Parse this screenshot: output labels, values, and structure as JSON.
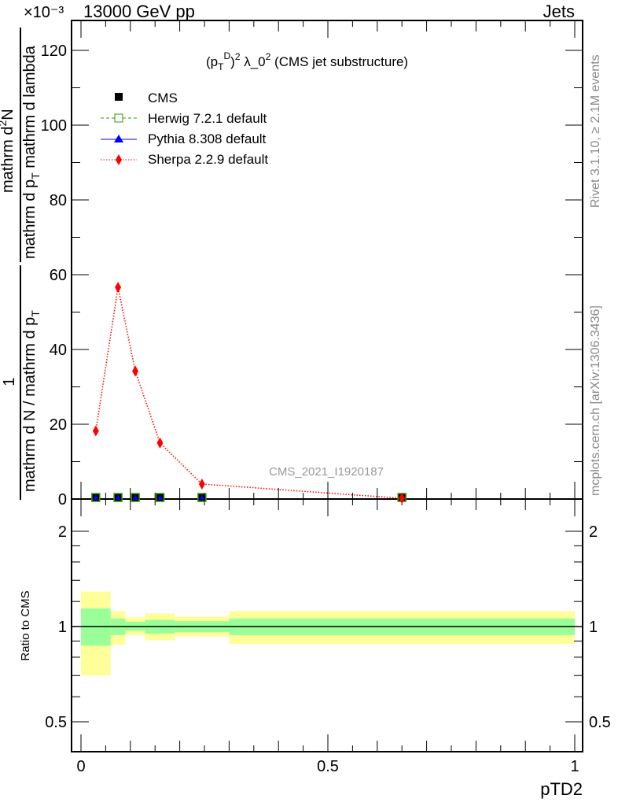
{
  "header": {
    "left": "13000 GeV pp",
    "right": "Jets",
    "exponent": "×10⁻³"
  },
  "side": {
    "rivet": "Rivet 3.1.10, ≥ 2.1M events",
    "mcplots": "mcplots.cern.ch [arXiv:1306.3436]"
  },
  "watermark": "CMS_2021_I1920187",
  "colors": {
    "cms": "#000000",
    "herwig": "#339900",
    "pythia": "#0000ff",
    "sherpa": "#ff0000",
    "band_yellow": "#ffff99",
    "band_green": "#99ff99"
  },
  "chart_data": [
    {
      "type": "scatter",
      "title": "(p_T^D)^2 λ_0^2 (CMS jet substructure)",
      "title_parts": {
        "p": "(p",
        "sub": "T",
        "sup": "D",
        "close": ")",
        "sq": "2",
        "lam": " λ_0",
        "sq2": "2",
        "rest": " (CMS jet substructure)"
      },
      "ylabel": "1 / (mathrm d N / mathrm d p_T) mathrm d²N / (mathrm d p_T mathrm d lambda)",
      "ylabel_parts": {
        "num": "1",
        "den": "mathrm d N / mathrm d p",
        "den_sub": "T",
        "num2": "mathrm d",
        "num2_sup": "2",
        "num2b": "N",
        "den2": "mathrm d p",
        "den2_sub": "T",
        "den2b": " mathrm d lambda"
      },
      "xlim": [
        0,
        1
      ],
      "ylim": [
        0,
        128
      ],
      "y_scale": "1e-3",
      "yticks": [
        0,
        20,
        40,
        60,
        80,
        100,
        120
      ],
      "legend": {
        "position": "top-left",
        "entries": [
          "CMS",
          "Herwig 7.2.1 default",
          "Pythia 8.308 default",
          "Sherpa 2.2.9 default"
        ]
      },
      "x": [
        0.03,
        0.075,
        0.11,
        0.16,
        0.245,
        0.65
      ],
      "series": [
        {
          "name": "CMS",
          "values": [
            0.2,
            0.2,
            0.2,
            0.2,
            0.2,
            0.2
          ]
        },
        {
          "name": "Herwig 7.2.1 default",
          "values": [
            0.2,
            0.2,
            0.2,
            0.2,
            0.2,
            0.2
          ]
        },
        {
          "name": "Pythia 8.308 default",
          "values": [
            0.2,
            0.2,
            0.2,
            0.2,
            0.2,
            0.2
          ]
        },
        {
          "name": "Sherpa 2.2.9 default",
          "values": [
            18.2,
            56.6,
            34.2,
            15.0,
            4.0,
            0.2
          ]
        }
      ]
    },
    {
      "type": "area",
      "ylabel": "Ratio to CMS",
      "xlabel": "pTD2",
      "ylim": [
        0.4,
        2.52
      ],
      "y_scale": "log",
      "xticks": [
        "0",
        "0.5",
        "1"
      ],
      "yticks": [
        "0.5",
        "1",
        "2"
      ],
      "ytick_values": [
        0.5,
        1,
        2
      ],
      "bin_edges": [
        0,
        0.06,
        0.09,
        0.13,
        0.19,
        0.3,
        1.0
      ],
      "yellow_band": [
        [
          0.7,
          1.29
        ],
        [
          0.875,
          1.12
        ],
        [
          0.94,
          1.07
        ],
        [
          0.905,
          1.1
        ],
        [
          0.93,
          1.075
        ],
        [
          0.88,
          1.12
        ]
      ],
      "green_band": [
        [
          0.87,
          1.14
        ],
        [
          0.94,
          1.06
        ],
        [
          0.97,
          1.035
        ],
        [
          0.95,
          1.05
        ],
        [
          0.96,
          1.04
        ],
        [
          0.94,
          1.06
        ]
      ]
    }
  ]
}
